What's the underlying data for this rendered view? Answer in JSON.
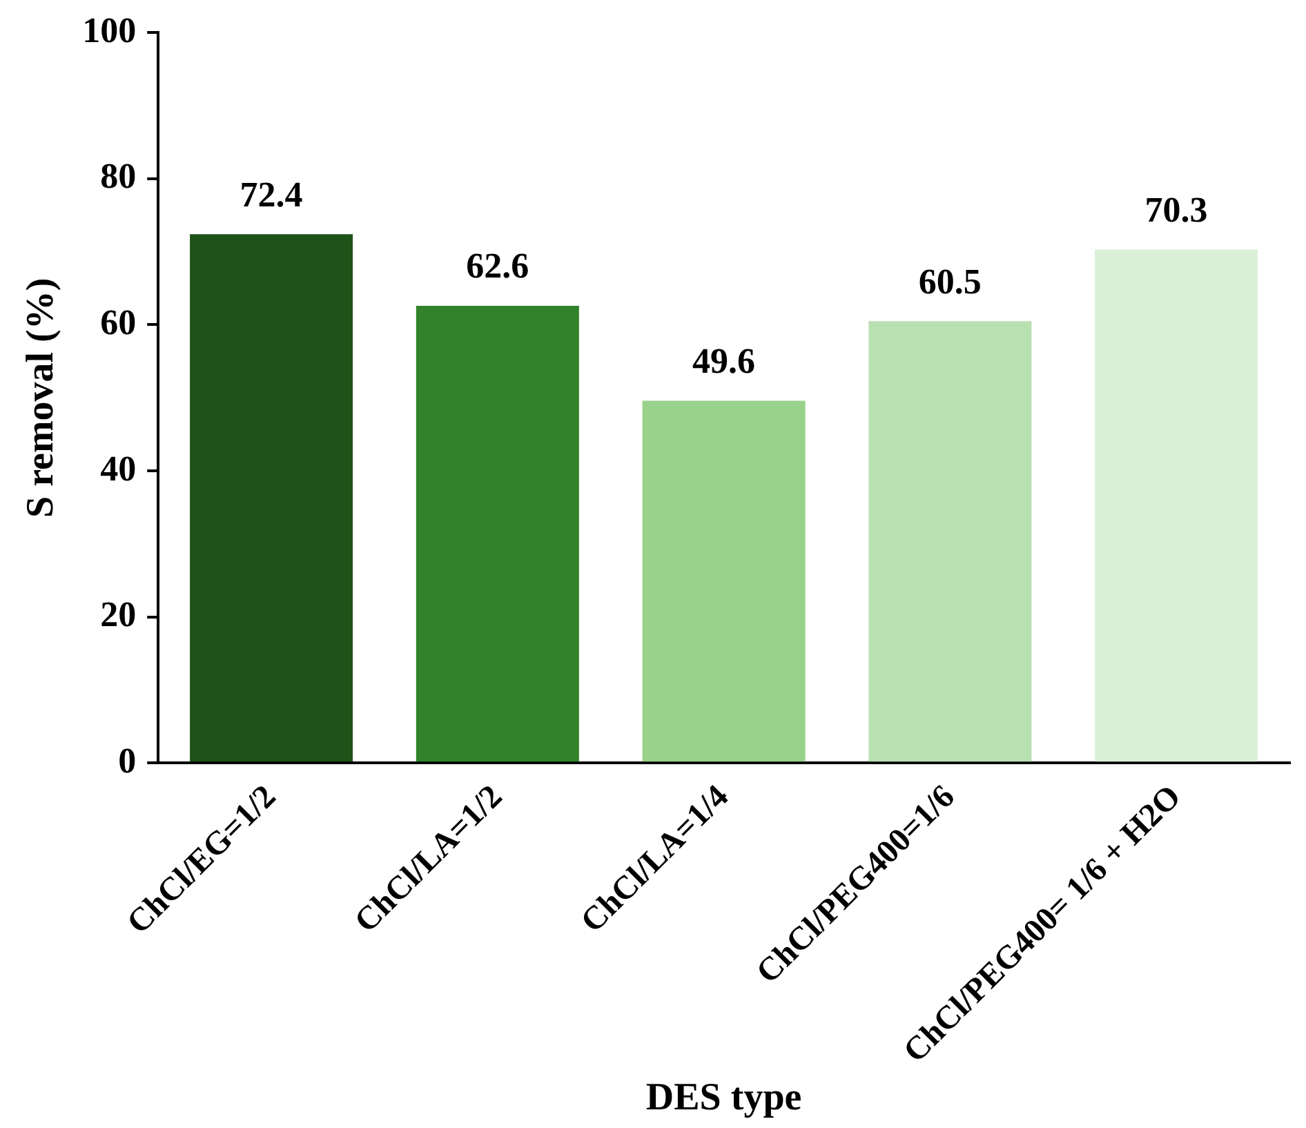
{
  "chart_data": {
    "type": "bar",
    "xlabel": "DES type",
    "ylabel": "S removal (%)",
    "categories": [
      "ChCl/EG=1/2",
      "ChCl/LA=1/2",
      "ChCl/LA=1/4",
      "ChCl/PEG400=1/6",
      "ChCl/PEG400= 1/6 + H2O"
    ],
    "values": [
      72.4,
      62.6,
      49.6,
      60.5,
      70.3
    ],
    "colors": [
      "#1e5219",
      "#31822b",
      "#98d28b",
      "#b8e0b1",
      "#dcefd9"
    ],
    "ylim": [
      0,
      100
    ],
    "yticks": [
      0,
      20,
      40,
      60,
      80,
      100
    ],
    "grid": false,
    "legend": false,
    "data_labels": true
  }
}
